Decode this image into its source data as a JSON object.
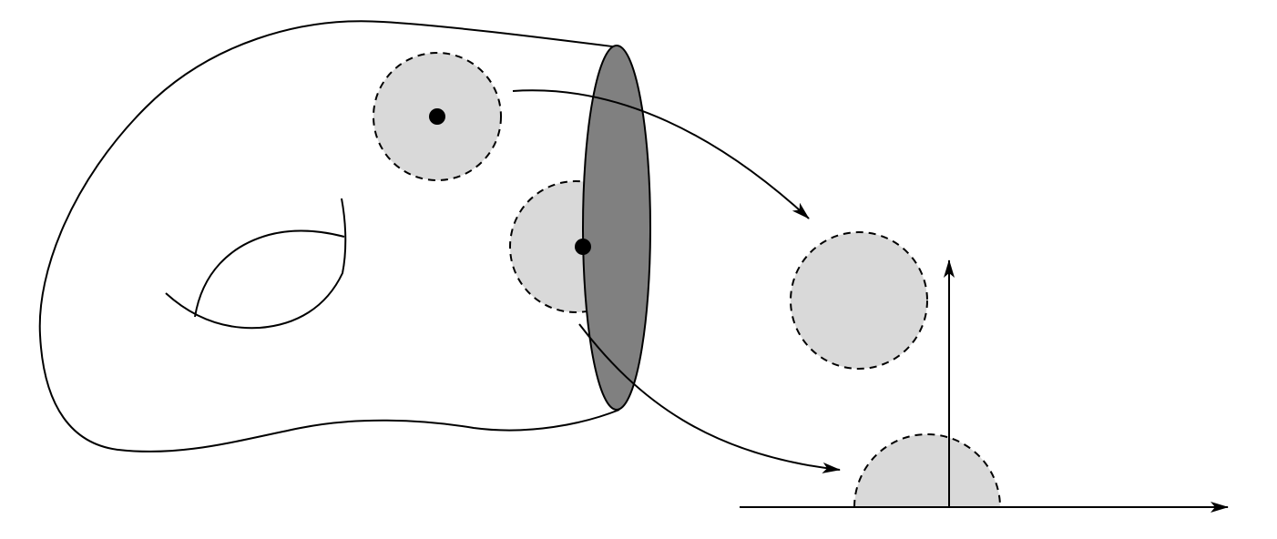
{
  "colors": {
    "background": "#ffffff",
    "stroke": "#000000",
    "chart_disk_fill": "#d9d9d9",
    "boundary_fill": "#808080",
    "point": "#000000"
  },
  "figure": {
    "surface": {
      "shape": "manifold-with-boundary",
      "handles": 1,
      "boundary_components": 1
    },
    "interior_chart": {
      "neighborhood": "disk",
      "target": "open-disk"
    },
    "boundary_chart": {
      "neighborhood": "disk",
      "target": "half-disk"
    },
    "half_plane": {
      "axes": [
        "horizontal-axis",
        "vertical-axis"
      ]
    }
  }
}
